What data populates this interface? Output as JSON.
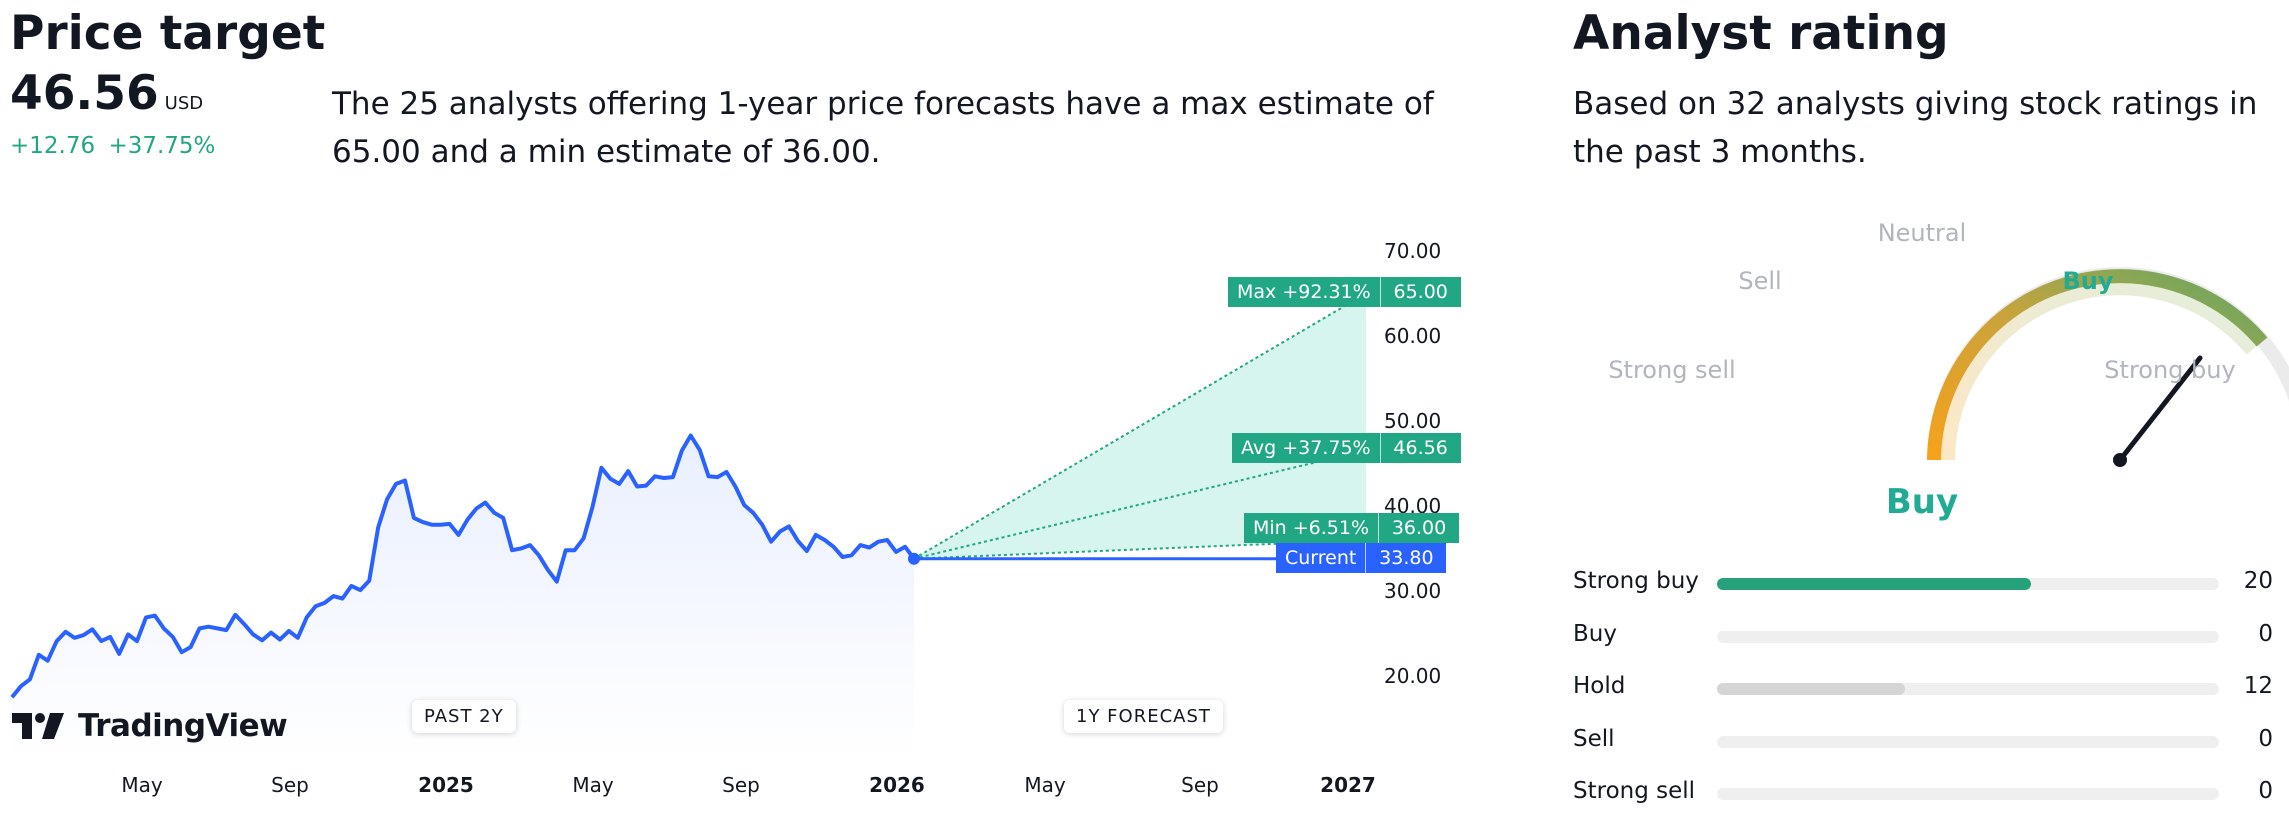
{
  "price_target": {
    "heading": "Price target",
    "value": "46.56",
    "currency": "USD",
    "change_abs": "+12.76",
    "change_pct": "+37.75%",
    "description": "The 25 analysts offering 1-year price forecasts have a max estimate of 65.00 and a min estimate of 36.00.",
    "y_ticks": [
      "70.00",
      "60.00",
      "50.00",
      "40.00",
      "30.00",
      "20.00"
    ],
    "x_ticks": [
      "May",
      "Sep",
      "2025",
      "May",
      "Sep",
      "2026",
      "May",
      "Sep",
      "2027"
    ],
    "x_ticks_bold": [
      false,
      false,
      true,
      false,
      false,
      true,
      false,
      false,
      true
    ],
    "past_label": "PAST 2Y",
    "forecast_label": "1Y FORECAST",
    "brand": "TradingView",
    "tags": {
      "max": {
        "label": "Max +92.31%",
        "value": "65.00"
      },
      "avg": {
        "label": "Avg +37.75%",
        "value": "46.56"
      },
      "min": {
        "label": "Min +6.51%",
        "value": "36.00"
      },
      "current": {
        "label": "Current",
        "value": "33.80"
      }
    }
  },
  "chart_data": {
    "type": "line",
    "ylim": [
      15,
      72
    ],
    "y_ticks": [
      70,
      60,
      50,
      40,
      30,
      20
    ],
    "x_ticks": [
      "May",
      "Sep",
      "2025",
      "May",
      "Sep",
      "2026",
      "May",
      "Sep",
      "2027"
    ],
    "series": [
      {
        "values": [
          17.5,
          18.8,
          19.6,
          22.5,
          21.8,
          24.1,
          25.2,
          24.5,
          24.8,
          25.5,
          24.1,
          24.6,
          22.6,
          24.9,
          24.1,
          26.9,
          27.1,
          25.6,
          24.6,
          22.8,
          23.4,
          25.6,
          25.8,
          25.6,
          25.4,
          27.2,
          26.1,
          24.9,
          24.2,
          25.1,
          24.3,
          25.3,
          24.5,
          26.9,
          28.2,
          28.6,
          29.4,
          29.1,
          30.6,
          30.1,
          31.2,
          37.5,
          40.8,
          42.6,
          43.0,
          38.6,
          38.1,
          37.8,
          37.8,
          37.9,
          36.6,
          38.4,
          39.7,
          40.4,
          39.2,
          38.6,
          34.8,
          35.0,
          35.4,
          34.2,
          32.5,
          31.1,
          34.8,
          34.8,
          36.2,
          39.9,
          44.5,
          43.2,
          42.6,
          44.1,
          42.3,
          42.4,
          43.5,
          43.3,
          43.4,
          46.5,
          48.3,
          46.6,
          43.5,
          43.4,
          44.0,
          42.3,
          40.1,
          39.2,
          37.8,
          35.8,
          37.0,
          37.6,
          35.9,
          34.7,
          36.6,
          36.0,
          35.2,
          34.0,
          34.2,
          35.4,
          35.1,
          35.8,
          36.0,
          34.6,
          35.2,
          33.8
        ]
      }
    ],
    "forecast": {
      "max": 65.0,
      "avg": 46.56,
      "min": 36.0,
      "current": 33.8
    }
  },
  "analyst_rating": {
    "heading": "Analyst rating",
    "description": "Based on 32 analysts giving stock ratings in the past 3 months.",
    "gauge_labels": {
      "strong_sell": "Strong sell",
      "sell": "Sell",
      "neutral": "Neutral",
      "buy": "Buy",
      "strong_buy": "Strong buy"
    },
    "result": "Buy",
    "result_color": "#22ab94",
    "rows": [
      {
        "label": "Strong buy",
        "count": "20",
        "fraction": 0.625,
        "color": "#26a17b"
      },
      {
        "label": "Buy",
        "count": "0",
        "fraction": 0,
        "color": "#d1d4dc"
      },
      {
        "label": "Hold",
        "count": "12",
        "fraction": 0.375,
        "color": "#d5d5d5"
      },
      {
        "label": "Sell",
        "count": "0",
        "fraction": 0,
        "color": "#d1d4dc"
      },
      {
        "label": "Strong sell",
        "count": "0",
        "fraction": 0,
        "color": "#d1d4dc"
      }
    ]
  }
}
